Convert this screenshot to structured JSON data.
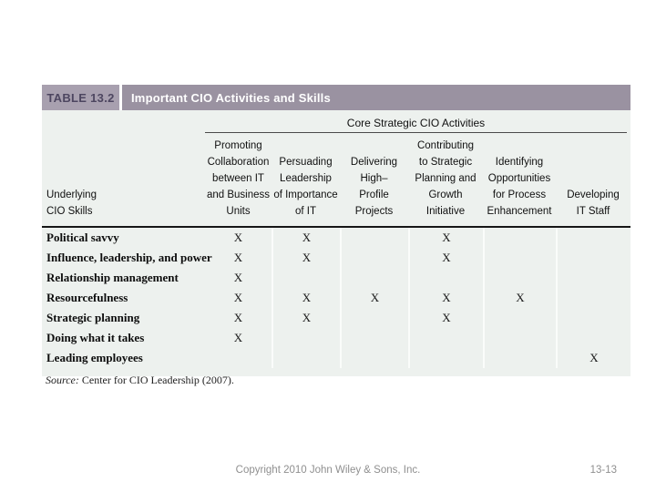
{
  "table": {
    "label": "TABLE 13.2",
    "title": "Important CIO Activities and Skills",
    "span_header": "Core Strategic CIO Activities",
    "skills_header": "Underlying\nCIO Skills",
    "columns": [
      "Promoting\nCollaboration\nbetween IT\nand Business\nUnits",
      "Persuading\nLeadership\nof Importance\nof IT",
      "Delivering\nHigh–\nProfile\nProjects",
      "Contributing\nto Strategic\nPlanning and\nGrowth\nInitiative",
      "Identifying\nOpportunities\nfor Process\nEnhancement",
      "Developing\nIT Staff"
    ],
    "rows": [
      {
        "skill": "Political savvy",
        "marks": [
          "X",
          "X",
          "",
          "X",
          "",
          ""
        ]
      },
      {
        "skill": "Influence, leadership, and power",
        "marks": [
          "X",
          "X",
          "",
          "X",
          "",
          ""
        ]
      },
      {
        "skill": "Relationship management",
        "marks": [
          "X",
          "",
          "",
          "",
          "",
          ""
        ]
      },
      {
        "skill": "Resourcefulness",
        "marks": [
          "X",
          "X",
          "X",
          "X",
          "X",
          ""
        ]
      },
      {
        "skill": "Strategic planning",
        "marks": [
          "X",
          "X",
          "",
          "X",
          "",
          ""
        ]
      },
      {
        "skill": "Doing what it takes",
        "marks": [
          "X",
          "",
          "",
          "",
          "",
          ""
        ]
      },
      {
        "skill": "Leading employees",
        "marks": [
          "",
          "",
          "",
          "",
          "",
          "X"
        ]
      }
    ],
    "source_label": "Source:",
    "source_text": " Center for CIO Leadership (2007)."
  },
  "footer": {
    "copyright": "Copyright 2010 John Wiley & Sons, Inc.",
    "page": "13-13"
  },
  "colors": {
    "table_label_bg": "#a8a0af",
    "table_title_bg": "#9a92a1",
    "table_label_text": "#4d4660",
    "table_body_bg": "#edf1ee",
    "footer_text": "#8f8f8f"
  }
}
